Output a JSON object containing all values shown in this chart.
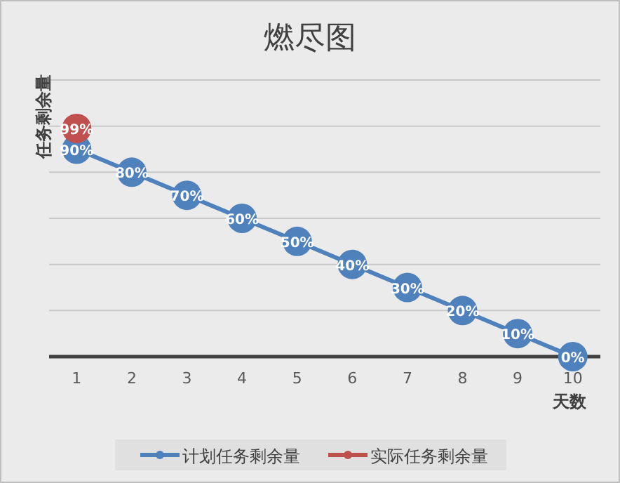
{
  "chart_data": {
    "type": "line",
    "title": "燃尽图",
    "xlabel": "天数",
    "ylabel": "任务剩余量",
    "categories": [
      "1",
      "2",
      "3",
      "4",
      "5",
      "6",
      "7",
      "8",
      "9",
      "10"
    ],
    "series": [
      {
        "name": "计划任务剩余量",
        "color": "#4f81bd",
        "values": [
          90,
          80,
          70,
          60,
          50,
          40,
          30,
          20,
          10,
          0
        ],
        "value_labels": [
          "90%",
          "80%",
          "70%",
          "60%",
          "50%",
          "40%",
          "30%",
          "20%",
          "10%",
          "0%"
        ]
      },
      {
        "name": "实际任务剩余量",
        "color": "#c0504d",
        "values": [
          99,
          null,
          null,
          null,
          null,
          null,
          null,
          null,
          null,
          null
        ],
        "value_labels": [
          "99%",
          null,
          null,
          null,
          null,
          null,
          null,
          null,
          null,
          null
        ]
      }
    ],
    "ylim": [
      0,
      120
    ],
    "yticks": [
      {
        "value": 0,
        "label": null
      },
      {
        "value": 20,
        "label": null
      },
      {
        "value": 40,
        "label": null
      },
      {
        "value": 60,
        "label": null
      },
      {
        "value": 80,
        "label": null
      },
      {
        "value": 100,
        "label": null
      },
      {
        "value": 120,
        "label": null
      }
    ],
    "grid": "y",
    "legend": "bottom",
    "marker": "circle",
    "tick_labels": "x"
  }
}
